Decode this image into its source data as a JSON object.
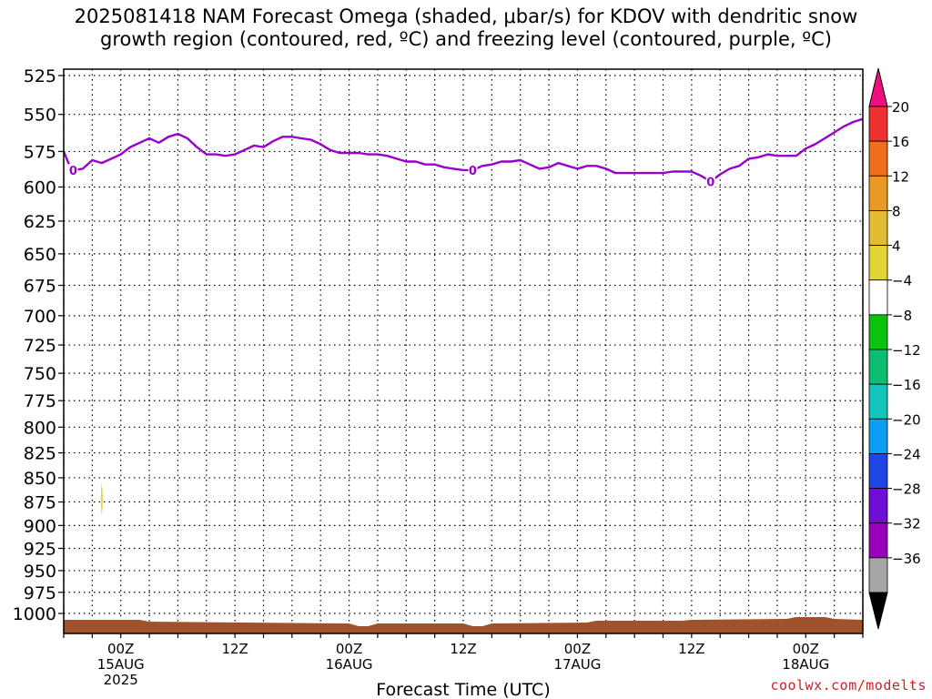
{
  "title": {
    "line1": "2025081418 NAM Forecast Omega (shaded, μbar/s) for KDOV with dendritic snow",
    "line2": "growth region (contoured, red, ºC) and freezing level (contoured, purple, ºC)"
  },
  "watermark": "coolwx.com/modelts",
  "chart_data": {
    "type": "line",
    "title": "2025081418 NAM Forecast Omega (shaded, μbar/s) for KDOV with dendritic snow growth region (contoured, red, ºC) and freezing level (contoured, purple, ºC)",
    "xlabel": "Forecast Time (UTC)",
    "ylabel": "",
    "x_unit": "hours since 2025-08-14 18Z",
    "xlim": [
      0,
      84
    ],
    "ylim": [
      1000,
      525
    ],
    "y_ticks": [
      525,
      550,
      575,
      600,
      625,
      650,
      675,
      700,
      725,
      750,
      775,
      800,
      825,
      850,
      875,
      900,
      925,
      950,
      975,
      1000
    ],
    "x_ticks": [
      {
        "x": 6,
        "lines": [
          "00Z",
          "15AUG",
          "2025"
        ]
      },
      {
        "x": 18,
        "lines": [
          "12Z"
        ]
      },
      {
        "x": 30,
        "lines": [
          "00Z",
          "16AUG"
        ]
      },
      {
        "x": 42,
        "lines": [
          "12Z"
        ]
      },
      {
        "x": 54,
        "lines": [
          "00Z",
          "17AUG"
        ]
      },
      {
        "x": 66,
        "lines": [
          "12Z"
        ]
      },
      {
        "x": 78,
        "lines": [
          "00Z",
          "18AUG"
        ]
      }
    ],
    "grid": true,
    "series": [
      {
        "name": "freezing level",
        "color": "#9a00cc",
        "contour_label": "0",
        "label_at_x": [
          1,
          43,
          68
        ],
        "points": [
          [
            0,
            575
          ],
          [
            0.5,
            583
          ],
          [
            1,
            588
          ],
          [
            2,
            587
          ],
          [
            3,
            581
          ],
          [
            4,
            583
          ],
          [
            5,
            580
          ],
          [
            6,
            577
          ],
          [
            7,
            572
          ],
          [
            8,
            569
          ],
          [
            9,
            566
          ],
          [
            10,
            569
          ],
          [
            11,
            565
          ],
          [
            12,
            563
          ],
          [
            13,
            566
          ],
          [
            14,
            572
          ],
          [
            15,
            577
          ],
          [
            16,
            577
          ],
          [
            17,
            578
          ],
          [
            18,
            577
          ],
          [
            19,
            574
          ],
          [
            20,
            571
          ],
          [
            21,
            572
          ],
          [
            22,
            568
          ],
          [
            23,
            565
          ],
          [
            24,
            565
          ],
          [
            25,
            566
          ],
          [
            26,
            567
          ],
          [
            27,
            570
          ],
          [
            28,
            574
          ],
          [
            29,
            576
          ],
          [
            30,
            576
          ],
          [
            31,
            576
          ],
          [
            32,
            577
          ],
          [
            33,
            577
          ],
          [
            34,
            578
          ],
          [
            35,
            580
          ],
          [
            36,
            582
          ],
          [
            37,
            582
          ],
          [
            38,
            584
          ],
          [
            39,
            584
          ],
          [
            40,
            586
          ],
          [
            41,
            587
          ],
          [
            42,
            588
          ],
          [
            43,
            588
          ],
          [
            44,
            585
          ],
          [
            45,
            584
          ],
          [
            46,
            582
          ],
          [
            47,
            582
          ],
          [
            48,
            581
          ],
          [
            49,
            584
          ],
          [
            50,
            587
          ],
          [
            51,
            586
          ],
          [
            52,
            583
          ],
          [
            53,
            585
          ],
          [
            54,
            587
          ],
          [
            55,
            585
          ],
          [
            56,
            585
          ],
          [
            57,
            587
          ],
          [
            58,
            590
          ],
          [
            59,
            590
          ],
          [
            60,
            590
          ],
          [
            61,
            590
          ],
          [
            62,
            590
          ],
          [
            63,
            590
          ],
          [
            64,
            589
          ],
          [
            65,
            589
          ],
          [
            66,
            589
          ],
          [
            67,
            592
          ],
          [
            68,
            596
          ],
          [
            69,
            591
          ],
          [
            70,
            587
          ],
          [
            71,
            585
          ],
          [
            72,
            580
          ],
          [
            73,
            579
          ],
          [
            74,
            577
          ],
          [
            75,
            578
          ],
          [
            76,
            578
          ],
          [
            77,
            578
          ],
          [
            78,
            573
          ],
          [
            79,
            570
          ],
          [
            80,
            566
          ],
          [
            81,
            562
          ],
          [
            82,
            558
          ],
          [
            83,
            555
          ],
          [
            84,
            553
          ]
        ]
      }
    ],
    "omega_shaded_features": [
      {
        "value_range": "4 to 8",
        "color": "#e3d536",
        "time_range": [
          3.8,
          4.2
        ],
        "pressure_range": [
          855,
          890
        ]
      }
    ],
    "terrain_color": "#a0522d",
    "colorbar": {
      "labels": [
        "20",
        "16",
        "12",
        "8",
        "4",
        "−4",
        "−8",
        "−12",
        "−16",
        "−20",
        "−24",
        "−28",
        "−32",
        "−36"
      ],
      "colors": [
        "#ee0e80",
        "#ee3030",
        "#ee6e1a",
        "#e89a22",
        "#e3bc34",
        "#e3d536",
        "#ffffff",
        "#0cc30c",
        "#0cbc70",
        "#12c4bc",
        "#0a9ef5",
        "#1e46e6",
        "#6f0ed6",
        "#9a00bc",
        "#a6a6a6",
        "#000000"
      ]
    }
  }
}
